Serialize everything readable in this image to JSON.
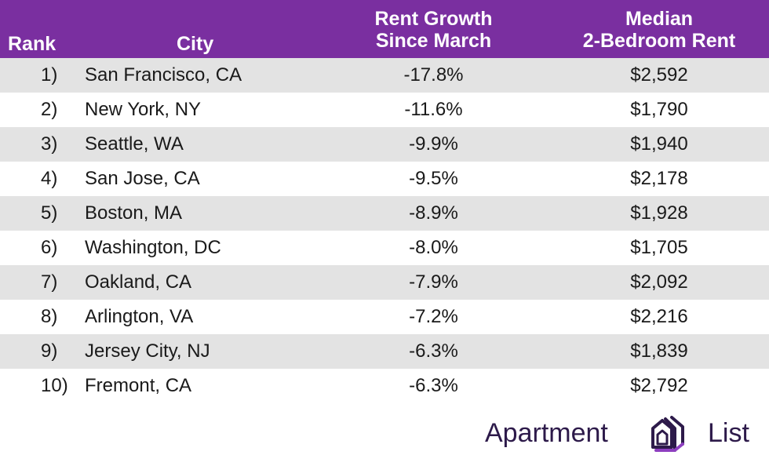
{
  "chart_data": {
    "type": "table",
    "columns": [
      "Rank",
      "City",
      "Rent Growth\nSince March",
      "Median\n2-Bedroom Rent"
    ],
    "rows": [
      {
        "rank": "1)",
        "city": "San Francisco, CA",
        "growth": "-17.8%",
        "rent": "$2,592"
      },
      {
        "rank": "2)",
        "city": "New York, NY",
        "growth": "-11.6%",
        "rent": "$1,790"
      },
      {
        "rank": "3)",
        "city": "Seattle, WA",
        "growth": "-9.9%",
        "rent": "$1,940"
      },
      {
        "rank": "4)",
        "city": "San Jose, CA",
        "growth": "-9.5%",
        "rent": "$2,178"
      },
      {
        "rank": "5)",
        "city": "Boston, MA",
        "growth": "-8.9%",
        "rent": "$1,928"
      },
      {
        "rank": "6)",
        "city": "Washington, DC",
        "growth": "-8.0%",
        "rent": "$1,705"
      },
      {
        "rank": "7)",
        "city": "Oakland, CA",
        "growth": "-7.9%",
        "rent": "$2,092"
      },
      {
        "rank": "8)",
        "city": "Arlington, VA",
        "growth": "-7.2%",
        "rent": "$2,216"
      },
      {
        "rank": "9)",
        "city": "Jersey City, NJ",
        "growth": "-6.3%",
        "rent": "$1,839"
      },
      {
        "rank": "10)",
        "city": "Fremont, CA",
        "growth": "-6.3%",
        "rent": "$2,792"
      }
    ]
  },
  "header": {
    "rank": "Rank",
    "city": "City",
    "growth_line1": "Rent Growth",
    "growth_line2": "Since March",
    "rent_line1": "Median",
    "rent_line2": "2-Bedroom Rent"
  },
  "logo": {
    "word1": "Apartment",
    "word2": "List",
    "icon": "apartment-list-logo-icon"
  },
  "colors": {
    "header_bg": "#7a2fa0",
    "row_shade": "#e3e3e3",
    "logo_text": "#2d1a4a",
    "logo_accent": "#8e3fc0"
  }
}
